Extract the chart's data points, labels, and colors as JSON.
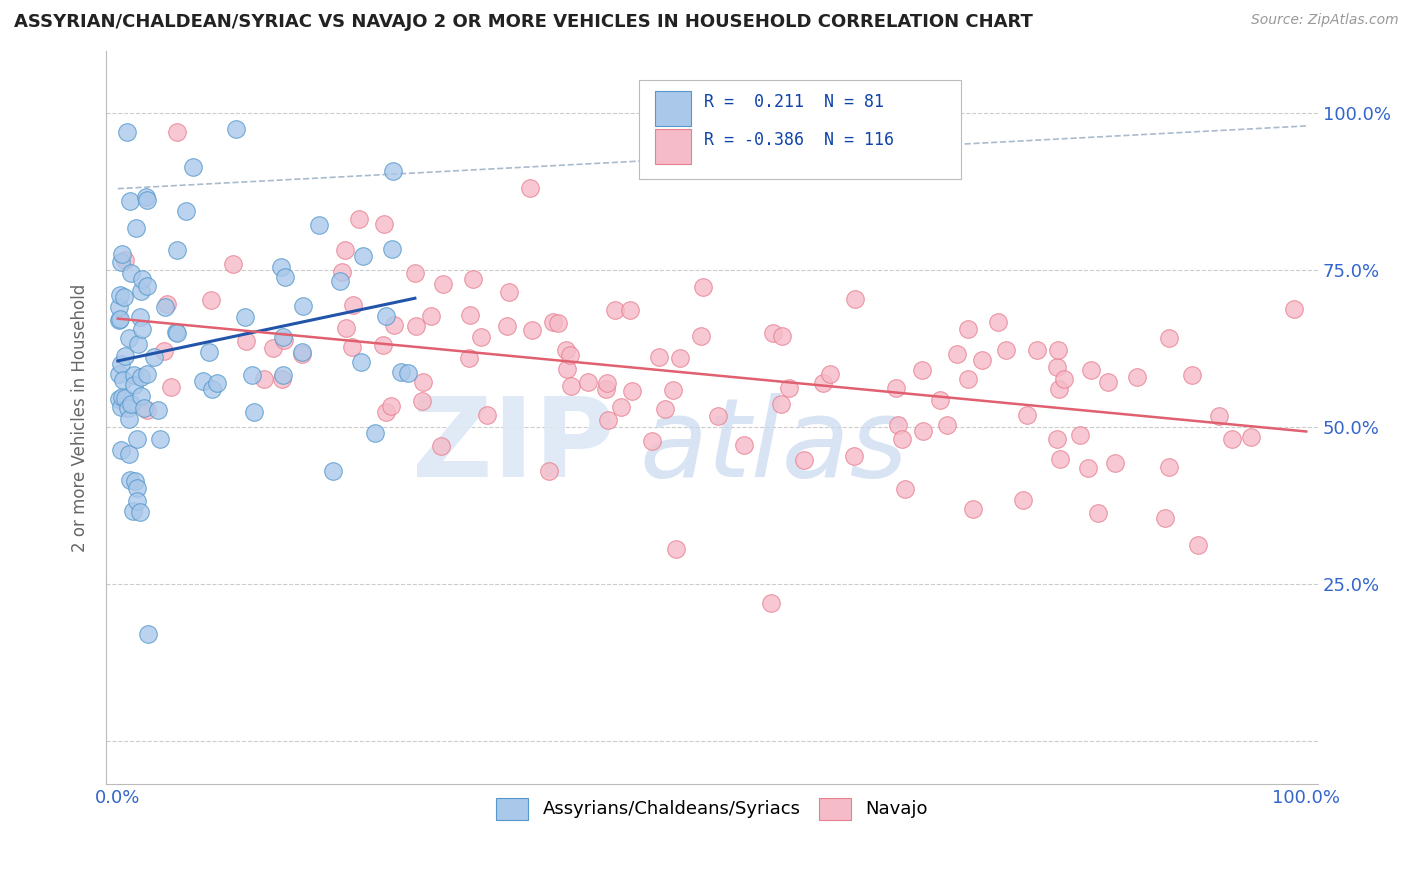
{
  "title": "ASSYRIAN/CHALDEAN/SYRIAC VS NAVAJO 2 OR MORE VEHICLES IN HOUSEHOLD CORRELATION CHART",
  "source": "Source: ZipAtlas.com",
  "ylabel": "2 or more Vehicles in Household",
  "R_blue": 0.211,
  "N_blue": 81,
  "R_pink": -0.386,
  "N_pink": 116,
  "blue_color": "#aac8ea",
  "blue_edge": "#5599cc",
  "pink_color": "#f5bbc8",
  "pink_edge": "#e88090",
  "blue_line_color": "#2255aa",
  "pink_line_color": "#e06070",
  "legend_blue_label": "Assyrians/Chaldeans/Syriacs",
  "legend_pink_label": "Navajo",
  "xmin": 0.0,
  "xmax": 100.0,
  "ymin": 0.0,
  "ymax": 1.0,
  "ytick_positions": [
    0.0,
    0.25,
    0.5,
    0.75,
    1.0
  ],
  "ytick_labels": [
    "",
    "25.0%",
    "50.0%",
    "75.0%",
    "100.0%"
  ],
  "xtick_positions": [
    0,
    100
  ],
  "xtick_labels": [
    "0.0%",
    "100.0%"
  ],
  "grid_color": "#cccccc",
  "ref_line_color": "#aabbcc",
  "watermark_zip_color": "#dce8f5",
  "watermark_atlas_color": "#c8d8f0"
}
